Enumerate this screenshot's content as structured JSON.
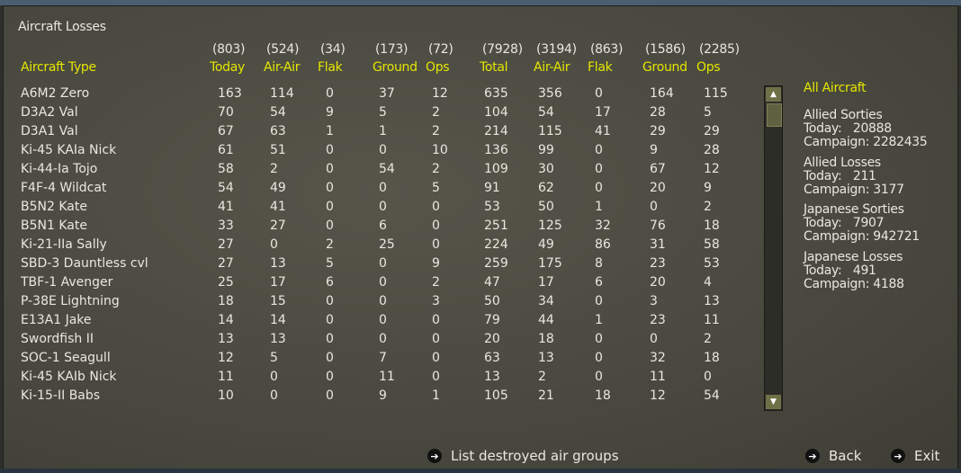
{
  "title": "Aircraft Losses",
  "headers": {
    "type": "Aircraft Type",
    "columns": [
      {
        "total": "(803)",
        "label": "Today"
      },
      {
        "total": "(524)",
        "label": "Air-Air"
      },
      {
        "total": "(34)",
        "label": "Flak"
      },
      {
        "total": "(173)",
        "label": "Ground"
      },
      {
        "total": "(72)",
        "label": "Ops"
      },
      {
        "total": "(7928)",
        "label": "Total"
      },
      {
        "total": "(3194)",
        "label": "Air-Air"
      },
      {
        "total": "(863)",
        "label": "Flak"
      },
      {
        "total": "(1586)",
        "label": "Ground"
      },
      {
        "total": "(2285)",
        "label": "Ops"
      }
    ]
  },
  "rows": [
    [
      "A6M2 Zero",
      "163",
      "114",
      "0",
      "37",
      "12",
      "635",
      "356",
      "0",
      "164",
      "115"
    ],
    [
      "D3A2 Val",
      "70",
      "54",
      "9",
      "5",
      "2",
      "104",
      "54",
      "17",
      "28",
      "5"
    ],
    [
      "D3A1 Val",
      "67",
      "63",
      "1",
      "1",
      "2",
      "214",
      "115",
      "41",
      "29",
      "29"
    ],
    [
      "Ki-45 KAIa Nick",
      "61",
      "51",
      "0",
      "0",
      "10",
      "136",
      "99",
      "0",
      "9",
      "28"
    ],
    [
      "Ki-44-Ia Tojo",
      "58",
      "2",
      "0",
      "54",
      "2",
      "109",
      "30",
      "0",
      "67",
      "12"
    ],
    [
      "F4F-4 Wildcat",
      "54",
      "49",
      "0",
      "0",
      "5",
      "91",
      "62",
      "0",
      "20",
      "9"
    ],
    [
      "B5N2 Kate",
      "41",
      "41",
      "0",
      "0",
      "0",
      "53",
      "50",
      "1",
      "0",
      "2"
    ],
    [
      "B5N1 Kate",
      "33",
      "27",
      "0",
      "6",
      "0",
      "251",
      "125",
      "32",
      "76",
      "18"
    ],
    [
      "Ki-21-IIa Sally",
      "27",
      "0",
      "2",
      "25",
      "0",
      "224",
      "49",
      "86",
      "31",
      "58"
    ],
    [
      "SBD-3 Dauntless cvl",
      "27",
      "13",
      "5",
      "0",
      "9",
      "259",
      "175",
      "8",
      "23",
      "53"
    ],
    [
      "TBF-1 Avenger",
      "25",
      "17",
      "6",
      "0",
      "2",
      "47",
      "17",
      "6",
      "20",
      "4"
    ],
    [
      "P-38E Lightning",
      "18",
      "15",
      "0",
      "0",
      "3",
      "50",
      "34",
      "0",
      "3",
      "13"
    ],
    [
      "E13A1 Jake",
      "14",
      "14",
      "0",
      "0",
      "0",
      "79",
      "44",
      "1",
      "23",
      "11"
    ],
    [
      "Swordfish II",
      "13",
      "13",
      "0",
      "0",
      "0",
      "20",
      "18",
      "0",
      "0",
      "2"
    ],
    [
      "SOC-1 Seagull",
      "12",
      "5",
      "0",
      "7",
      "0",
      "63",
      "13",
      "0",
      "32",
      "18"
    ],
    [
      "Ki-45 KAIb Nick",
      "11",
      "0",
      "0",
      "11",
      "0",
      "13",
      "2",
      "0",
      "11",
      "0"
    ],
    [
      "Ki-15-II Babs",
      "10",
      "0",
      "0",
      "9",
      "1",
      "105",
      "21",
      "18",
      "12",
      "54"
    ]
  ],
  "summary": {
    "heading": "All Aircraft",
    "blocks": [
      {
        "title": "Allied Sorties",
        "today": "Today:   20888",
        "campaign": "Campaign: 2282435"
      },
      {
        "title": "Allied Losses",
        "today": "Today:   211",
        "campaign": "Campaign: 3177"
      },
      {
        "title": "Japanese Sorties",
        "today": "Today:   7907",
        "campaign": "Campaign: 942721"
      },
      {
        "title": "Japanese Losses",
        "today": "Today:   491",
        "campaign": "Campaign: 4188"
      }
    ]
  },
  "buttons": {
    "list": "List destroyed air groups",
    "back": "Back",
    "exit": "Exit"
  },
  "icons": {
    "scroll_up": "▲",
    "scroll_down": "▼",
    "arrow": "➔"
  }
}
